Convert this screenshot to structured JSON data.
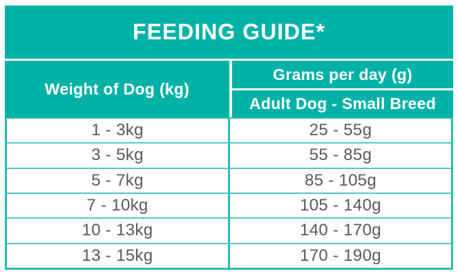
{
  "chart_data": {
    "type": "table",
    "title": "FEEDING GUIDE*",
    "columns": [
      "Weight of Dog (kg)",
      "Grams per day (g) — Adult Dog - Small Breed"
    ],
    "rows": [
      [
        "1 - 3kg",
        "25 - 55g"
      ],
      [
        "3 - 5kg",
        "55 - 85g"
      ],
      [
        "5 - 7kg",
        "85 - 105g"
      ],
      [
        "7 - 10kg",
        "105 - 140g"
      ],
      [
        "10 - 13kg",
        "140 - 170g"
      ],
      [
        "13 - 15kg",
        "170 - 190g"
      ]
    ]
  },
  "table": {
    "title": "FEEDING GUIDE*",
    "header": {
      "weight_col": "Weight of Dog (kg)",
      "grams_col": "Grams per day (g)",
      "grams_subheader": "Adult Dog - Small Breed"
    },
    "rows": [
      {
        "weight": "1 - 3kg",
        "grams": "25 - 55g"
      },
      {
        "weight": "3 - 5kg",
        "grams": "55 - 85g"
      },
      {
        "weight": "5 - 7kg",
        "grams": "85 - 105g"
      },
      {
        "weight": "7 - 10kg",
        "grams": "105 - 140g"
      },
      {
        "weight": "10 - 13kg",
        "grams": "140 - 170g"
      },
      {
        "weight": "13 - 15kg",
        "grams": "170 - 190g"
      }
    ]
  },
  "colors": {
    "teal": "#00b2a6",
    "border_strong": "#2abab2",
    "row_line": "#53c8c1",
    "text_gray": "#58595b",
    "text_white": "#ffffff"
  }
}
